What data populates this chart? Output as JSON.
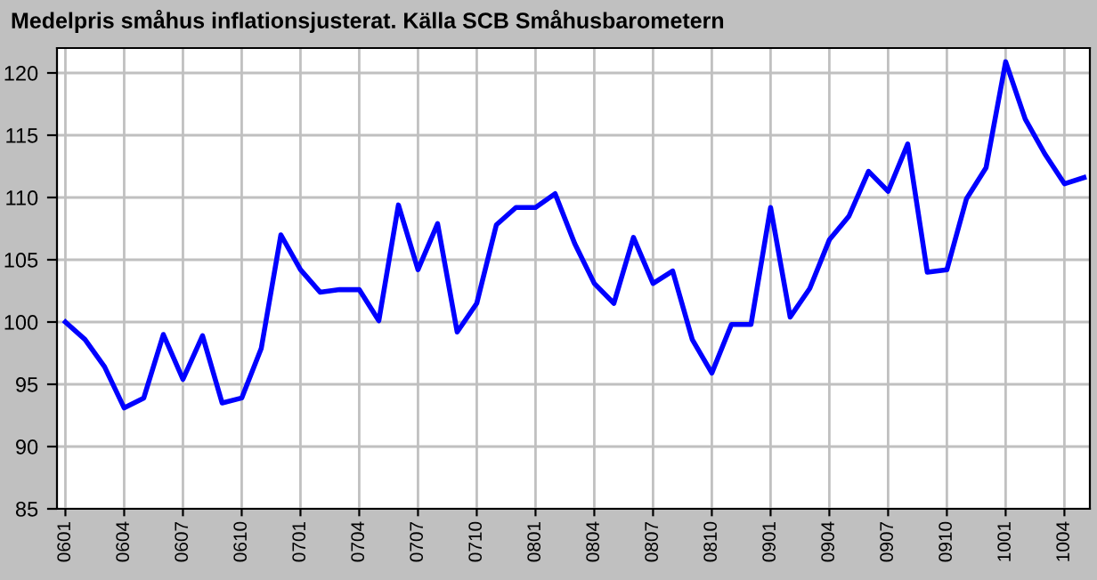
{
  "chart_data": {
    "type": "line",
    "title": "Medelpris småhus inflationsjusterat. Källa SCB Småhusbarometern",
    "categories": [
      "0601",
      null,
      null,
      "0604",
      null,
      null,
      "0607",
      null,
      null,
      "0610",
      null,
      null,
      "0701",
      null,
      null,
      "0704",
      null,
      null,
      "0707",
      null,
      null,
      "0710",
      null,
      null,
      "0801",
      null,
      null,
      "0804",
      null,
      null,
      "0807",
      null,
      null,
      "0810",
      null,
      null,
      "0901",
      null,
      null,
      "0904",
      null,
      null,
      "0907",
      null,
      null,
      "0910",
      null,
      null,
      "1001",
      null,
      null,
      "1004",
      null
    ],
    "series": [
      {
        "color": "#0000ff",
        "values": [
          100,
          98.6,
          96.4,
          93.1,
          93.9,
          99.0,
          95.4,
          98.9,
          93.5,
          93.9,
          97.9,
          107.0,
          104.2,
          102.4,
          102.6,
          102.6,
          100.1,
          109.4,
          104.2,
          107.9,
          99.2,
          101.5,
          107.8,
          109.2,
          109.2,
          110.3,
          106.3,
          103.1,
          101.5,
          106.8,
          103.1,
          104.1,
          98.6,
          95.9,
          99.8,
          99.8,
          109.2,
          100.4,
          102.7,
          106.6,
          108.5,
          112.1,
          110.5,
          114.3,
          104.0,
          104.2,
          109.9,
          112.4,
          120.9,
          116.3,
          113.5,
          111.1,
          111.6
        ]
      }
    ],
    "ylim": [
      85,
      122
    ],
    "yticks": [
      85,
      90,
      95,
      100,
      105,
      110,
      115,
      120
    ],
    "grid": true,
    "legend": false,
    "marker": "none",
    "line_style": "solid"
  }
}
